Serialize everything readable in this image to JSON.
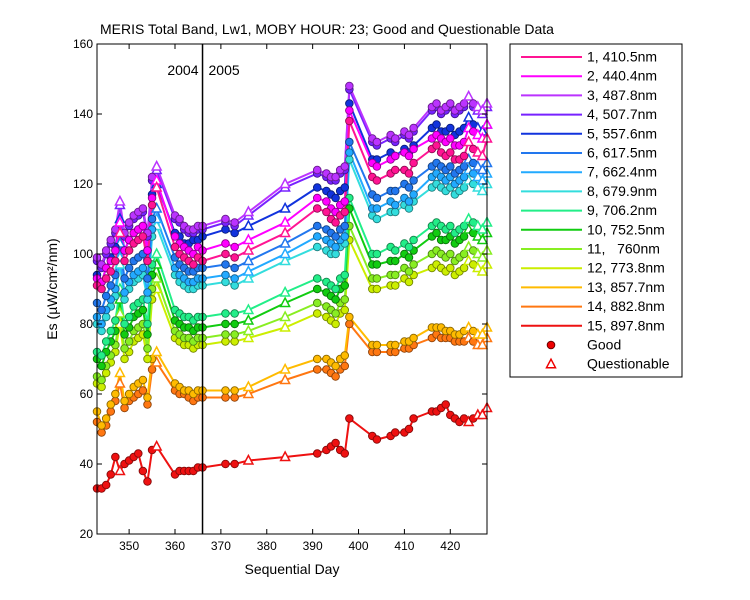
{
  "chart_data": {
    "type": "line",
    "title": "MERIS Total Band,  Lw1, MOBY HOUR: 23;  Good and Questionable Data",
    "xlabel": "Sequential Day",
    "ylabel": "Es (µW/cm²/nm)",
    "xlim": [
      343,
      428
    ],
    "ylim": [
      20,
      160
    ],
    "xticks": [
      350,
      360,
      370,
      380,
      390,
      400,
      410,
      420
    ],
    "yticks": [
      20,
      40,
      60,
      80,
      100,
      120,
      140,
      160
    ],
    "grid": false,
    "legend_position": "right",
    "year_divider": {
      "x": 366,
      "left_label": "2004",
      "right_label": "2005"
    },
    "markers": {
      "good_label": "Good",
      "questionable_label": "Questionable"
    },
    "days": [
      343,
      344,
      345,
      346,
      347,
      348,
      349,
      350,
      351,
      352,
      353,
      354,
      355,
      356,
      360,
      361,
      362,
      363,
      364,
      365,
      366,
      371,
      373,
      376,
      384,
      391,
      393,
      394,
      395,
      396,
      397,
      398,
      403,
      404,
      407,
      408,
      410,
      411,
      412,
      416,
      417,
      418,
      419,
      420,
      421,
      422,
      423,
      424,
      425,
      426,
      427,
      428
    ],
    "questionable_days": [
      348,
      356,
      376,
      384,
      424,
      426,
      427,
      428
    ],
    "series": [
      {
        "name": "1, 410.5nm",
        "color": "#ff1493",
        "values": [
          91,
          90,
          93,
          95,
          98,
          106,
          98,
          101,
          103,
          104,
          105,
          98,
          114,
          119,
          102,
          100,
          99,
          98,
          97,
          99,
          98,
          100,
          99,
          101,
          106,
          113,
          112,
          110,
          109,
          111,
          112,
          138,
          122,
          121,
          123,
          124,
          124,
          123,
          126,
          130,
          131,
          129,
          128,
          129,
          127,
          127,
          128,
          132,
          130,
          129,
          128,
          133
        ]
      },
      {
        "name": "2, 440.4nm",
        "color": "#ff00ff",
        "values": [
          93,
          92,
          96,
          98,
          101,
          109,
          101,
          104,
          106,
          107,
          108,
          101,
          116,
          121,
          105,
          103,
          102,
          101,
          100,
          102,
          101,
          103,
          102,
          104,
          109,
          116,
          115,
          113,
          112,
          114,
          115,
          141,
          126,
          125,
          127,
          128,
          129,
          128,
          130,
          133,
          134,
          133,
          132,
          133,
          131,
          131,
          132,
          136,
          135,
          134,
          133,
          137
        ]
      },
      {
        "name": "3, 487.8nm",
        "color": "#bb33ff",
        "values": [
          99,
          97,
          101,
          104,
          107,
          115,
          106,
          109,
          111,
          112,
          113,
          106,
          122,
          125,
          111,
          110,
          108,
          107,
          107,
          108,
          108,
          110,
          109,
          112,
          120,
          124,
          123,
          122,
          122,
          124,
          125,
          148,
          133,
          132,
          134,
          133,
          135,
          134,
          136,
          142,
          143,
          141,
          142,
          143,
          141,
          142,
          143,
          145,
          143,
          142,
          141,
          143
        ]
      },
      {
        "name": "4, 507.7nm",
        "color": "#7722ff",
        "values": [
          98,
          96,
          100,
          103,
          106,
          114,
          105,
          108,
          110,
          111,
          112,
          105,
          121,
          124,
          110,
          109,
          107,
          106,
          106,
          107,
          107,
          109,
          108,
          111,
          119,
          123,
          122,
          121,
          121,
          123,
          124,
          147,
          132,
          131,
          133,
          132,
          134,
          133,
          135,
          141,
          142,
          140,
          141,
          142,
          140,
          141,
          142,
          144,
          142,
          141,
          140,
          142
        ]
      },
      {
        "name": "5, 557.6nm",
        "color": "#1133dd",
        "values": [
          94,
          92,
          96,
          99,
          102,
          110,
          101,
          104,
          106,
          107,
          108,
          101,
          117,
          120,
          106,
          105,
          103,
          103,
          104,
          104,
          105,
          107,
          106,
          108,
          113,
          119,
          118,
          117,
          116,
          118,
          119,
          143,
          127,
          127,
          129,
          128,
          130,
          129,
          131,
          136,
          137,
          135,
          135,
          136,
          134,
          135,
          136,
          139,
          137,
          136,
          135,
          137
        ]
      },
      {
        "name": "6, 617.5nm",
        "color": "#2277ee",
        "values": [
          86,
          84,
          88,
          91,
          94,
          103,
          93,
          96,
          98,
          99,
          100,
          93,
          110,
          113,
          99,
          97,
          96,
          95,
          95,
          96,
          96,
          97,
          96,
          98,
          103,
          108,
          107,
          106,
          105,
          107,
          108,
          132,
          117,
          116,
          118,
          118,
          120,
          119,
          121,
          125,
          126,
          125,
          124,
          125,
          123,
          124,
          125,
          127,
          126,
          125,
          124,
          126
        ]
      },
      {
        "name": "7, 662.4nm",
        "color": "#22aaff",
        "values": [
          82,
          80,
          84,
          87,
          90,
          99,
          89,
          92,
          94,
          95,
          96,
          89,
          107,
          110,
          96,
          94,
          93,
          92,
          92,
          93,
          93,
          94,
          93,
          95,
          100,
          105,
          104,
          103,
          102,
          104,
          105,
          129,
          113,
          113,
          115,
          114,
          116,
          115,
          117,
          122,
          123,
          122,
          121,
          122,
          120,
          121,
          122,
          124,
          123,
          122,
          121,
          123
        ]
      },
      {
        "name": "8, 679.9nm",
        "color": "#33dddd",
        "values": [
          80,
          78,
          82,
          85,
          88,
          97,
          87,
          90,
          92,
          93,
          94,
          87,
          105,
          108,
          94,
          92,
          91,
          90,
          90,
          91,
          91,
          92,
          91,
          93,
          98,
          102,
          101,
          100,
          100,
          102,
          103,
          127,
          111,
          110,
          112,
          112,
          114,
          113,
          115,
          119,
          120,
          119,
          118,
          119,
          117,
          118,
          119,
          121,
          120,
          119,
          118,
          120
        ]
      },
      {
        "name": "9, 706.2nm",
        "color": "#22ee88",
        "values": [
          72,
          71,
          75,
          78,
          81,
          90,
          80,
          82,
          85,
          86,
          87,
          80,
          97,
          100,
          84,
          83,
          82,
          82,
          81,
          82,
          82,
          83,
          83,
          84,
          89,
          93,
          92,
          91,
          90,
          93,
          94,
          116,
          100,
          100,
          102,
          101,
          103,
          102,
          104,
          108,
          109,
          108,
          107,
          108,
          106,
          107,
          108,
          110,
          109,
          108,
          107,
          109
        ]
      },
      {
        "name": "10, 752.5nm",
        "color": "#11cc11",
        "values": [
          70,
          68,
          72,
          75,
          78,
          87,
          77,
          79,
          82,
          83,
          84,
          77,
          94,
          97,
          81,
          80,
          79,
          79,
          78,
          79,
          79,
          80,
          80,
          81,
          86,
          90,
          89,
          88,
          87,
          90,
          91,
          113,
          97,
          97,
          98,
          98,
          100,
          99,
          101,
          105,
          106,
          104,
          104,
          105,
          103,
          104,
          105,
          107,
          106,
          105,
          104,
          106
        ]
      },
      {
        "name": "11,   760nm",
        "color": "#88ee22",
        "values": [
          65,
          64,
          68,
          71,
          74,
          83,
          73,
          75,
          78,
          79,
          80,
          73,
          90,
          93,
          78,
          77,
          76,
          76,
          75,
          76,
          76,
          77,
          77,
          78,
          82,
          86,
          85,
          84,
          83,
          86,
          87,
          108,
          93,
          93,
          94,
          94,
          96,
          95,
          97,
          100,
          101,
          100,
          99,
          100,
          98,
          99,
          100,
          102,
          101,
          100,
          99,
          101
        ]
      },
      {
        "name": "12, 773.8nm",
        "color": "#ccee00",
        "values": [
          63,
          62,
          66,
          69,
          72,
          80,
          70,
          72,
          75,
          76,
          77,
          70,
          87,
          90,
          76,
          75,
          74,
          74,
          73,
          74,
          74,
          75,
          75,
          76,
          79,
          83,
          82,
          81,
          80,
          83,
          84,
          104,
          90,
          90,
          91,
          91,
          93,
          92,
          94,
          96,
          97,
          96,
          95,
          96,
          94,
          95,
          96,
          98,
          97,
          96,
          95,
          97
        ]
      },
      {
        "name": "13, 857.7nm",
        "color": "#ffbb00",
        "values": [
          55,
          51,
          53,
          57,
          60,
          66,
          58,
          60,
          62,
          63,
          64,
          59,
          70,
          72,
          63,
          62,
          61,
          61,
          60,
          61,
          61,
          61,
          61,
          62,
          67,
          70,
          70,
          69,
          68,
          70,
          71,
          82,
          74,
          74,
          74,
          74,
          75,
          75,
          76,
          79,
          79,
          79,
          78,
          78,
          77,
          77,
          78,
          79,
          78,
          77,
          77,
          79
        ]
      },
      {
        "name": "14, 882.8nm",
        "color": "#ff7711",
        "values": [
          52,
          49,
          51,
          55,
          58,
          63,
          56,
          58,
          59,
          60,
          61,
          57,
          67,
          69,
          61,
          60,
          60,
          59,
          58,
          59,
          59,
          59,
          59,
          60,
          64,
          67,
          67,
          66,
          65,
          67,
          68,
          80,
          72,
          72,
          72,
          72,
          73,
          73,
          74,
          76,
          77,
          76,
          76,
          76,
          75,
          75,
          75,
          76,
          75,
          74,
          74,
          76
        ]
      },
      {
        "name": "15, 897.8nm",
        "color": "#ee1111",
        "values": [
          33,
          33,
          34,
          37,
          42,
          38,
          40,
          41,
          42,
          43,
          38,
          35,
          44,
          45,
          37,
          38,
          38,
          38,
          38,
          39,
          39,
          40,
          40,
          41,
          42,
          43,
          44,
          45,
          46,
          44,
          43,
          53,
          48,
          47,
          48,
          49,
          49,
          50,
          53,
          55,
          55,
          56,
          57,
          54,
          53,
          52,
          53,
          52,
          53,
          54,
          54,
          56
        ]
      }
    ]
  }
}
